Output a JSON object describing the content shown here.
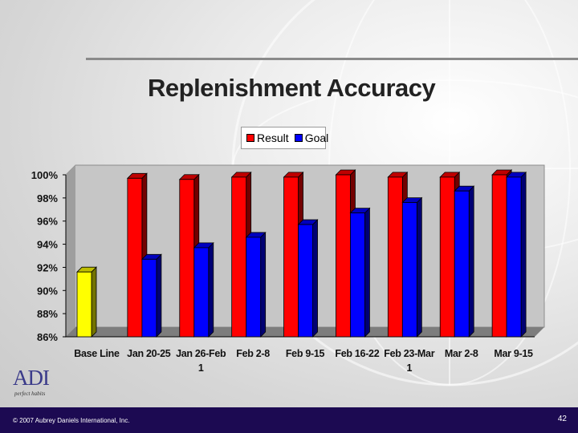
{
  "slide": {
    "title": "Replenishment Accuracy",
    "copyright": "© 2007 Aubrey Daniels International, Inc.",
    "page_number": "42",
    "logo_text": "ADI",
    "logo_tagline": "perfect habits"
  },
  "colors": {
    "result": "#ff0000",
    "goal": "#0000ff",
    "baseline": "#ffff00",
    "footer": "#1c0a52"
  },
  "chart_data": {
    "type": "bar",
    "title": "Replenishment Accuracy",
    "categories": [
      "Base Line",
      "Jan 20-25",
      "Jan 26-Feb 1",
      "Feb 2-8",
      "Feb 9-15",
      "Feb 16-22",
      "Feb 23-Mar 1",
      "Mar 2-8",
      "Mar 9-15"
    ],
    "category_lines": [
      [
        "Base Line"
      ],
      [
        "Jan 20-25"
      ],
      [
        "Jan 26-Feb",
        "1"
      ],
      [
        "Feb 2-8"
      ],
      [
        "Feb 9-15"
      ],
      [
        "Feb 16-22"
      ],
      [
        "Feb 23-Mar",
        "1"
      ],
      [
        "Mar 2-8"
      ],
      [
        "Mar 9-15"
      ]
    ],
    "series": [
      {
        "name": "Result",
        "values": [
          null,
          99.7,
          99.6,
          99.8,
          99.8,
          100.0,
          99.8,
          99.8,
          100.0
        ]
      },
      {
        "name": "Goal",
        "values": [
          null,
          92.7,
          93.7,
          94.6,
          95.7,
          96.7,
          97.6,
          98.6,
          99.8
        ]
      }
    ],
    "baseline_value": 91.6,
    "ylim": [
      86,
      100
    ],
    "yticks": [
      "100%",
      "98%",
      "96%",
      "94%",
      "92%",
      "90%",
      "88%",
      "86%"
    ],
    "legend_position": "top-center",
    "grid": false
  }
}
